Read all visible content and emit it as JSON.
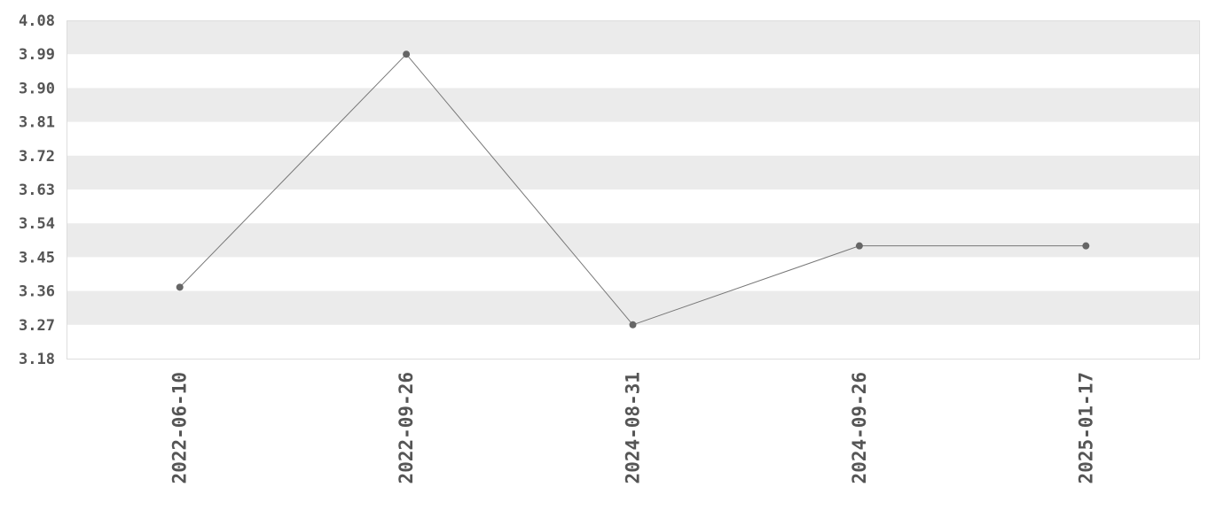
{
  "chart_data": {
    "type": "line",
    "categories": [
      "2022-06-10",
      "2022-09-26",
      "2024-08-31",
      "2024-09-26",
      "2025-01-17"
    ],
    "values": [
      3.37,
      3.99,
      3.27,
      3.48,
      3.48
    ],
    "ylim": [
      3.18,
      4.08
    ],
    "yticks": [
      "3.18",
      "3.27",
      "3.36",
      "3.45",
      "3.54",
      "3.63",
      "3.72",
      "3.81",
      "3.90",
      "3.99",
      "4.08"
    ],
    "grid": "alternating horizontal bands",
    "legend": "none",
    "colors": {
      "line": "#777777",
      "marker": "#666666",
      "band": "#ebebeb",
      "text": "#555555"
    }
  }
}
